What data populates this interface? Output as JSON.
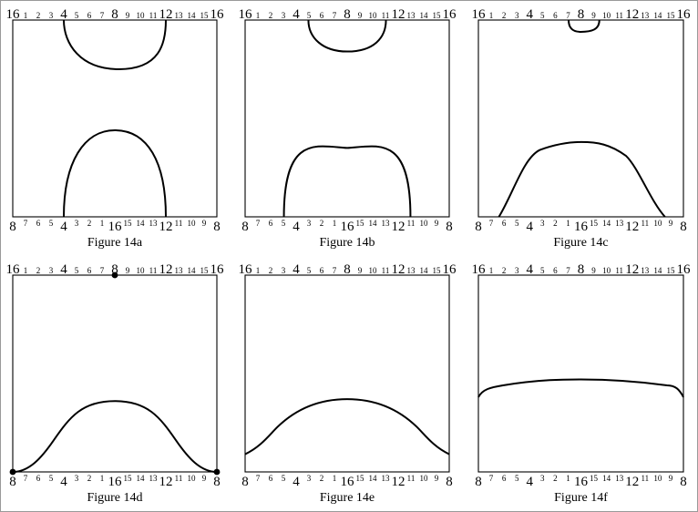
{
  "colors": {
    "stroke": "#000000",
    "background": "#ffffff",
    "frame": "#9a9a9a"
  },
  "top_labels": [
    "16",
    "1",
    "2",
    "3",
    "4",
    "5",
    "6",
    "7",
    "8",
    "9",
    "10",
    "11",
    "12",
    "13",
    "14",
    "15",
    "16"
  ],
  "bottom_labels": [
    "8",
    "7",
    "6",
    "5",
    "4",
    "3",
    "2",
    "1",
    "16",
    "15",
    "14",
    "13",
    "12",
    "11",
    "10",
    "9",
    "8"
  ],
  "major_labels": [
    "4",
    "8",
    "12",
    "16"
  ],
  "figures": [
    {
      "id": "14a",
      "caption": "Figure 14a"
    },
    {
      "id": "14b",
      "caption": "Figure 14b"
    },
    {
      "id": "14c",
      "caption": "Figure 14c"
    },
    {
      "id": "14d",
      "caption": "Figure 14d"
    },
    {
      "id": "14e",
      "caption": "Figure 14e"
    },
    {
      "id": "14f",
      "caption": "Figure 14f"
    }
  ]
}
